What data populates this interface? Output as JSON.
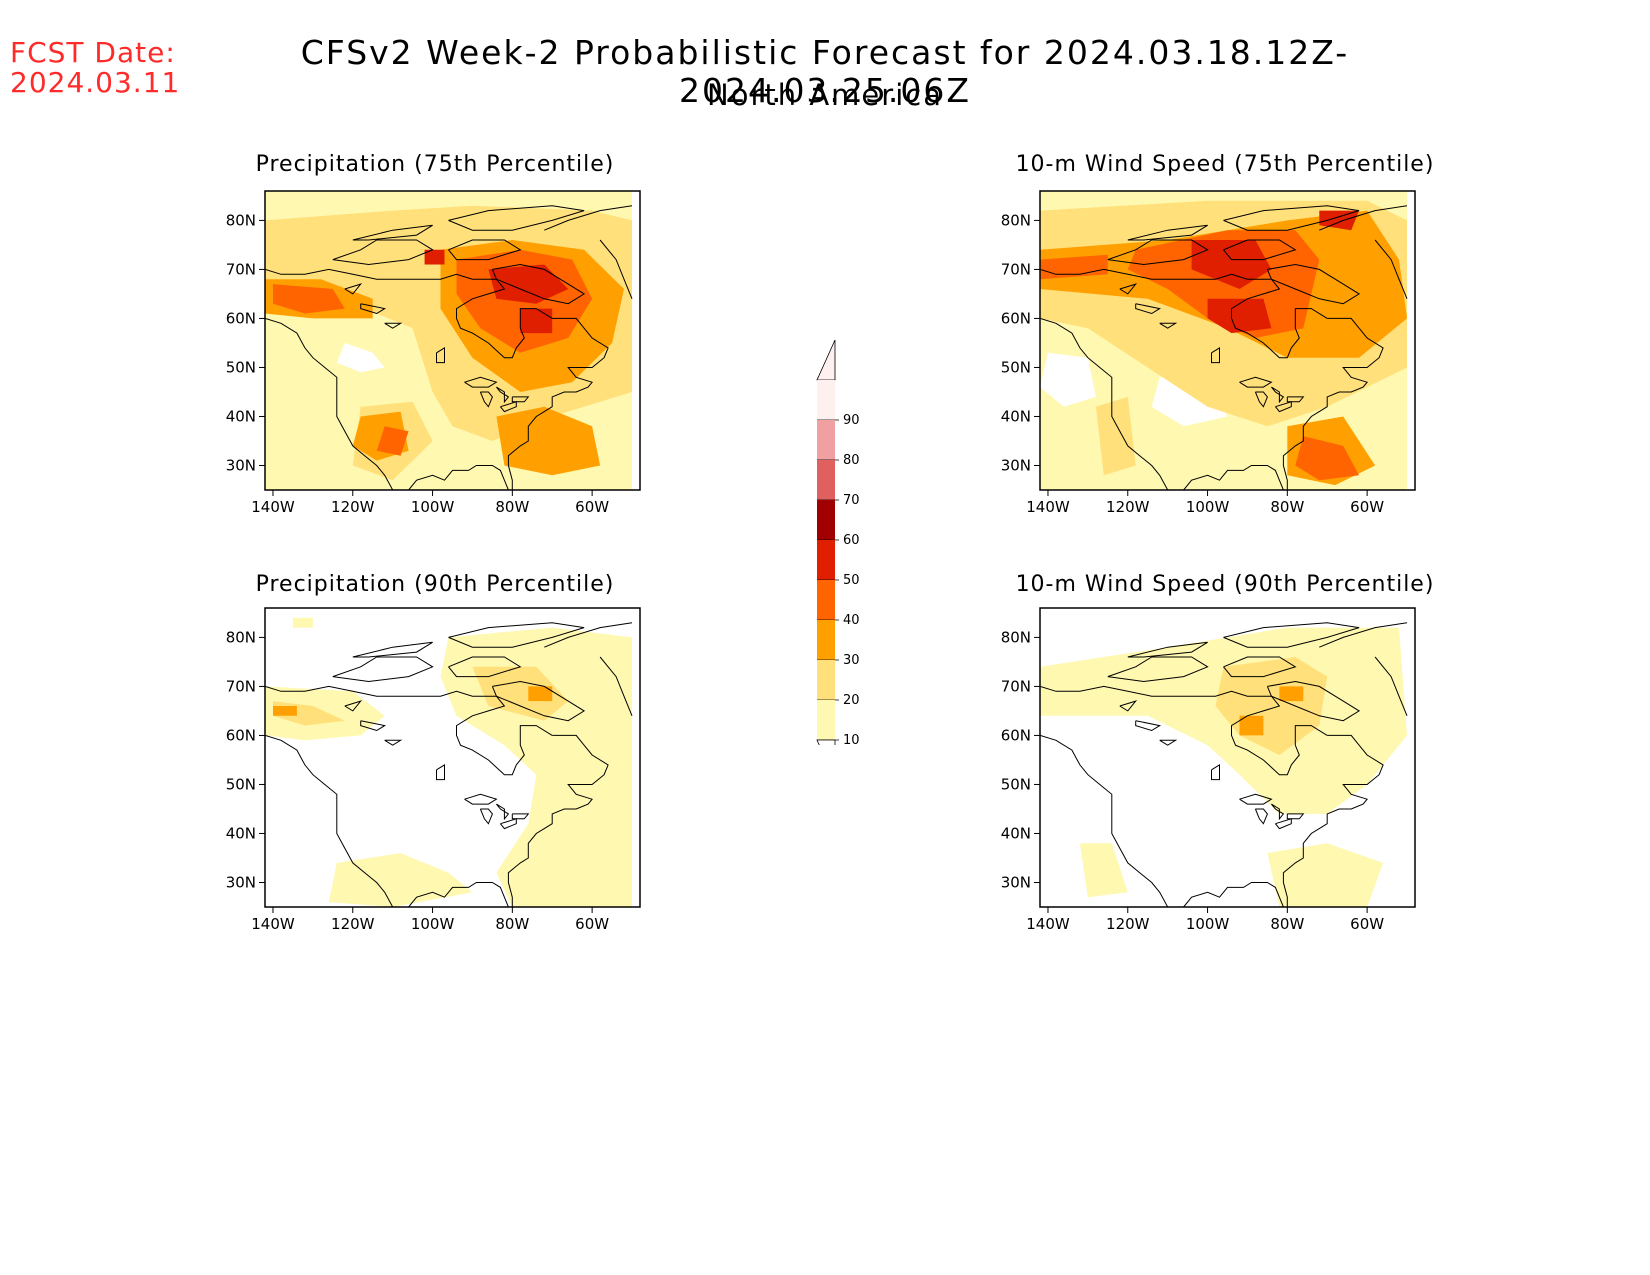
{
  "header": {
    "fcst_label": "FCST Date:",
    "fcst_date": "2024.03.11",
    "title": "CFSv2 Week-2 Probabilistic Forecast for 2024.03.18.12Z-2024.03.25.06Z",
    "subtitle": "North America"
  },
  "axes": {
    "lat_labels": [
      "80N",
      "70N",
      "60N",
      "50N",
      "40N",
      "30N"
    ],
    "lon_labels": [
      "140W",
      "120W",
      "100W",
      "80W",
      "60W"
    ]
  },
  "panels": [
    {
      "id": "precip75",
      "title": "Precipitation (75th Percentile)"
    },
    {
      "id": "wind75",
      "title": "10-m Wind Speed (75th Percentile)"
    },
    {
      "id": "precip90",
      "title": "Precipitation (90th Percentile)"
    },
    {
      "id": "wind90",
      "title": "10-m Wind Speed (90th Percentile)"
    }
  ],
  "colorbar": {
    "labels": [
      "90",
      "80",
      "70",
      "60",
      "50",
      "40",
      "30",
      "20",
      "10"
    ],
    "colors": [
      "#fff0f0",
      "#f0a0a0",
      "#e06060",
      "#a00000",
      "#e01e00",
      "#ff6400",
      "#ffa000",
      "#ffe07a",
      "#fff8b0"
    ]
  }
}
